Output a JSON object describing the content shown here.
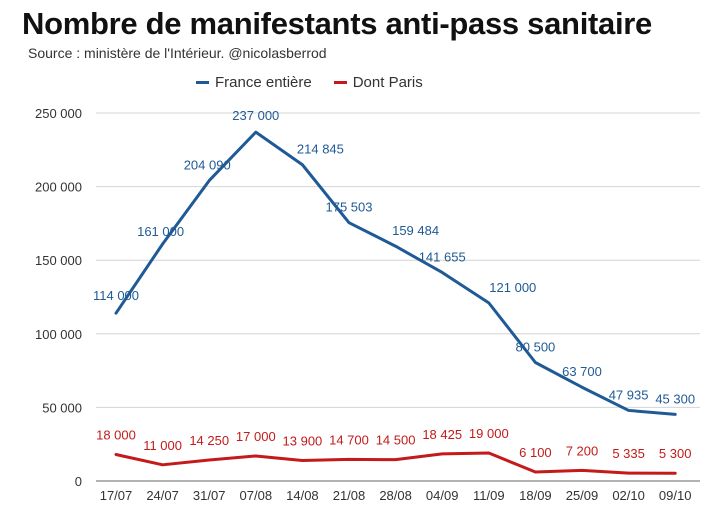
{
  "title": "Nombre de manifestants anti-pass sanitaire",
  "subtitle": "Source : ministère de l'Intérieur. @nicolasberrod",
  "legend": [
    {
      "label": "France entière",
      "color": "#1f5a96"
    },
    {
      "label": "Dont Paris",
      "color": "#c41a1a"
    }
  ],
  "chart_data": {
    "type": "line",
    "title": "Nombre de manifestants anti-pass sanitaire",
    "subtitle": "Source : ministère de l'Intérieur. @nicolasberrod",
    "xlabel": "",
    "ylabel": "",
    "ylim": [
      0,
      250000
    ],
    "yticks": [
      0,
      50000,
      100000,
      150000,
      200000,
      250000
    ],
    "ytick_labels": [
      "0",
      "50 000",
      "100 000",
      "150 000",
      "200 000",
      "250 000"
    ],
    "grid": true,
    "legend_position": "top",
    "categories": [
      "17/07",
      "24/07",
      "31/07",
      "07/08",
      "14/08",
      "21/08",
      "28/08",
      "04/09",
      "11/09",
      "18/09",
      "25/09",
      "02/10",
      "09/10"
    ],
    "series": [
      {
        "name": "France entière",
        "color": "#1f5a96",
        "values": [
          114000,
          161000,
          204090,
          237000,
          214845,
          175503,
          159484,
          141655,
          121000,
          80500,
          63700,
          47935,
          45300
        ],
        "labels": [
          "114 000",
          "161 000",
          "204 090",
          "237 000",
          "214 845",
          "175 503",
          "159 484",
          "141 655",
          "121 000",
          "80 500",
          "63 700",
          "47 935",
          "45 300"
        ]
      },
      {
        "name": "Dont Paris",
        "color": "#c41a1a",
        "values": [
          18000,
          11000,
          14250,
          17000,
          13900,
          14700,
          14500,
          18425,
          19000,
          6100,
          7200,
          5335,
          5300
        ],
        "labels": [
          "18 000",
          "11 000",
          "14 250",
          "17 000",
          "13 900",
          "14 700",
          "14 500",
          "18 425",
          "19 000",
          "6 100",
          "7 200",
          "5 335",
          "5 300"
        ]
      }
    ]
  }
}
